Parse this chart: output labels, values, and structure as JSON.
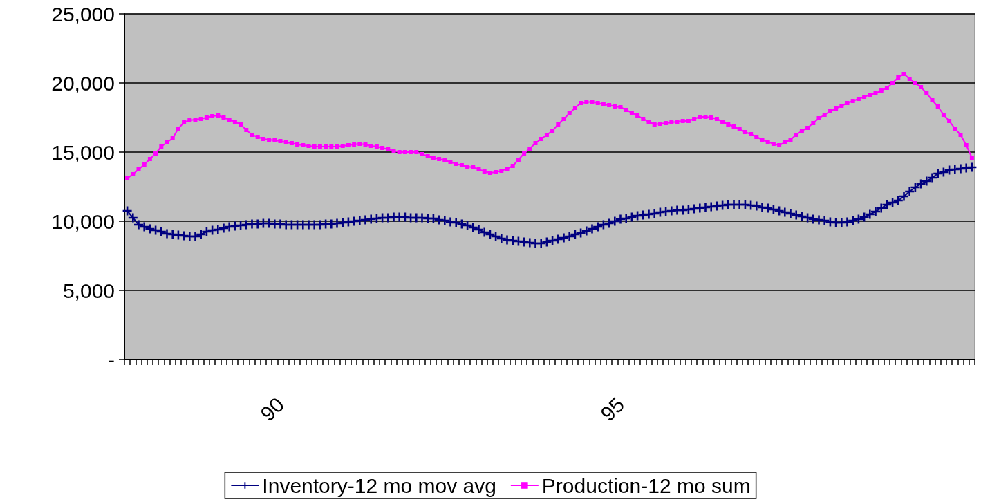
{
  "chart_data": {
    "type": "line",
    "categories": [
      null,
      null,
      null,
      null,
      null,
      null,
      null,
      null,
      null,
      null,
      null,
      null,
      null,
      null,
      null,
      null,
      null,
      null,
      null,
      null,
      null,
      null,
      null,
      null,
      null,
      null,
      null,
      "90",
      null,
      null,
      null,
      null,
      null,
      null,
      null,
      null,
      null,
      null,
      null,
      null,
      null,
      null,
      null,
      null,
      null,
      null,
      null,
      null,
      null,
      null,
      null,
      null,
      null,
      null,
      null,
      null,
      null,
      null,
      null,
      null,
      null,
      null,
      null,
      null,
      null,
      null,
      null,
      null,
      null,
      null,
      null,
      null,
      null,
      null,
      null,
      null,
      null,
      null,
      null,
      null,
      null,
      null,
      null,
      null,
      null,
      null,
      null,
      "95",
      null,
      null,
      null,
      null,
      null,
      null,
      null,
      null,
      null,
      null,
      null,
      null,
      null,
      null,
      null,
      null,
      null,
      null,
      null,
      null,
      null,
      null,
      null,
      null,
      null,
      null,
      null,
      null,
      null,
      null,
      null,
      null,
      null,
      null,
      null,
      null,
      null,
      null,
      null,
      null,
      null,
      null,
      null,
      null,
      null,
      null,
      null,
      null,
      null,
      null,
      null,
      null,
      null,
      null,
      null,
      null,
      null,
      null,
      null,
      null,
      null,
      null
    ],
    "series": [
      {
        "name": "Inventory-12 mo mov avg",
        "color": "#000080",
        "marker": "cross",
        "values": [
          10750,
          10250,
          9750,
          9600,
          9450,
          9350,
          9250,
          9100,
          9050,
          9000,
          8950,
          8900,
          8900,
          9050,
          9250,
          9350,
          9400,
          9500,
          9600,
          9650,
          9700,
          9750,
          9800,
          9800,
          9850,
          9850,
          9800,
          9800,
          9750,
          9750,
          9750,
          9750,
          9750,
          9750,
          9750,
          9800,
          9800,
          9850,
          9900,
          9950,
          10000,
          10050,
          10100,
          10150,
          10200,
          10250,
          10250,
          10300,
          10300,
          10300,
          10250,
          10250,
          10250,
          10200,
          10200,
          10100,
          10050,
          9950,
          9900,
          9800,
          9700,
          9550,
          9400,
          9200,
          9050,
          8900,
          8750,
          8650,
          8600,
          8550,
          8500,
          8450,
          8400,
          8400,
          8500,
          8600,
          8700,
          8800,
          8900,
          9050,
          9150,
          9300,
          9450,
          9600,
          9750,
          9850,
          10000,
          10150,
          10200,
          10300,
          10400,
          10450,
          10500,
          10550,
          10650,
          10700,
          10750,
          10800,
          10800,
          10850,
          10900,
          10950,
          11000,
          11050,
          11100,
          11150,
          11200,
          11200,
          11200,
          11200,
          11150,
          11100,
          11000,
          10950,
          10850,
          10750,
          10650,
          10550,
          10450,
          10350,
          10250,
          10150,
          10100,
          10050,
          9950,
          9900,
          9900,
          9950,
          10050,
          10150,
          10300,
          10500,
          10700,
          10950,
          11200,
          11350,
          11500,
          11800,
          12150,
          12450,
          12700,
          12900,
          13150,
          13450,
          13550,
          13700,
          13750,
          13800,
          13850,
          13900
        ]
      },
      {
        "name": "Production-12 mo sum",
        "color": "#ff00ff",
        "marker": "square",
        "values": [
          13100,
          13400,
          13750,
          14100,
          14500,
          14900,
          15400,
          15700,
          16000,
          16700,
          17150,
          17300,
          17350,
          17400,
          17500,
          17600,
          17650,
          17500,
          17350,
          17200,
          17000,
          16600,
          16250,
          16100,
          15950,
          15900,
          15850,
          15800,
          15700,
          15650,
          15550,
          15500,
          15450,
          15400,
          15400,
          15400,
          15400,
          15400,
          15450,
          15500,
          15550,
          15600,
          15550,
          15450,
          15400,
          15300,
          15200,
          15100,
          15000,
          15000,
          15000,
          15000,
          14850,
          14700,
          14600,
          14500,
          14400,
          14300,
          14150,
          14050,
          13950,
          13900,
          13750,
          13600,
          13500,
          13550,
          13650,
          13800,
          14000,
          14450,
          14900,
          15250,
          15650,
          15950,
          16250,
          16550,
          17000,
          17400,
          17800,
          18200,
          18550,
          18600,
          18650,
          18550,
          18450,
          18400,
          18300,
          18250,
          18050,
          17850,
          17650,
          17400,
          17200,
          17000,
          17050,
          17100,
          17150,
          17200,
          17250,
          17250,
          17400,
          17550,
          17550,
          17500,
          17400,
          17200,
          17000,
          16850,
          16650,
          16450,
          16300,
          16100,
          15900,
          15750,
          15600,
          15500,
          15700,
          15900,
          16250,
          16550,
          16750,
          17100,
          17450,
          17700,
          17950,
          18150,
          18350,
          18550,
          18700,
          18850,
          19000,
          19150,
          19250,
          19450,
          19650,
          20000,
          20400,
          20650,
          20300,
          20000,
          19700,
          19250,
          18750,
          18300,
          17700,
          17250,
          16700,
          16250,
          15500,
          14600
        ]
      }
    ],
    "ylim": [
      0,
      25000
    ],
    "yticks": [
      {
        "value": 0,
        "label": "-"
      },
      {
        "value": 5000,
        "label": "5,000"
      },
      {
        "value": 10000,
        "label": "10,000"
      },
      {
        "value": 15000,
        "label": "15,000"
      },
      {
        "value": 20000,
        "label": "20,000"
      },
      {
        "value": 25000,
        "label": "25,000"
      }
    ],
    "grid": "y",
    "legend": "bottom"
  }
}
